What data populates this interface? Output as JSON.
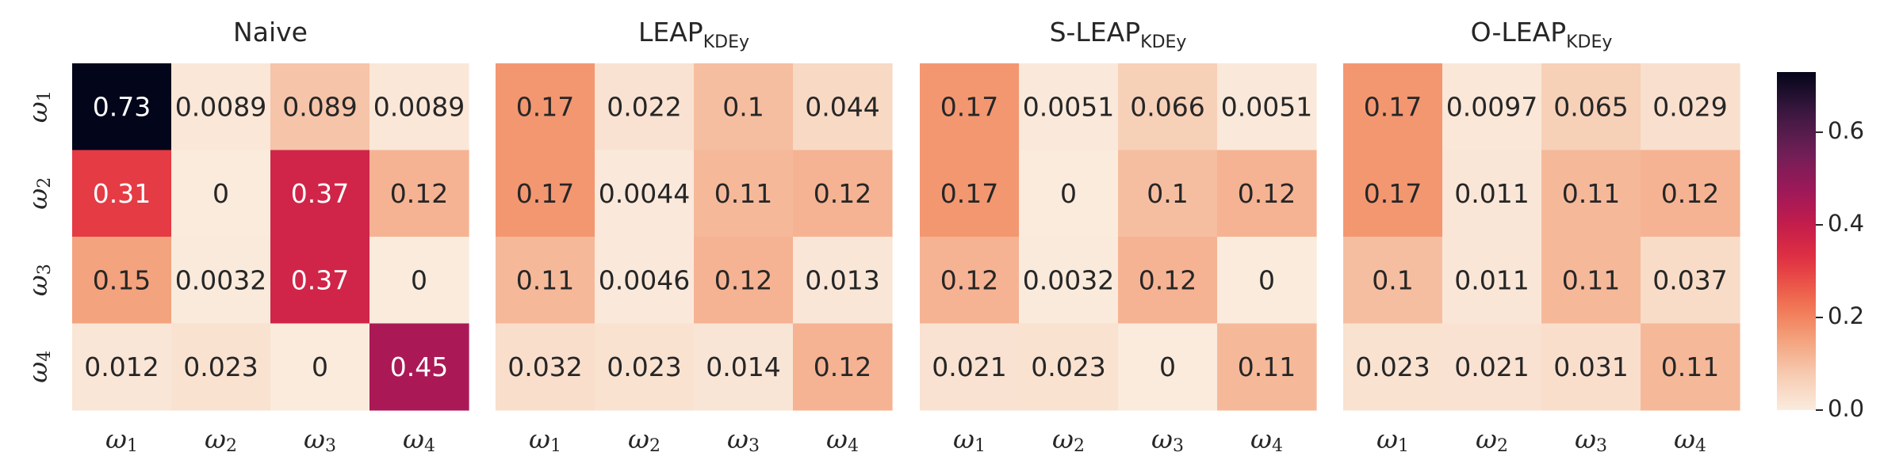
{
  "chart_data": {
    "type": "heatmap",
    "colormap": "rocket_r",
    "vmin": 0.0,
    "vmax": 0.73,
    "row_labels": [
      "ω₁",
      "ω₂",
      "ω₃",
      "ω₄"
    ],
    "col_labels": [
      "ω₁",
      "ω₂",
      "ω₃",
      "ω₄"
    ],
    "colorbar": {
      "ticks": [
        0.0,
        0.2,
        0.4,
        0.6
      ],
      "tick_labels": [
        "0.0",
        "0.2",
        "0.4",
        "0.6"
      ]
    },
    "panels": [
      {
        "title": "Naive",
        "title_main": "Naive",
        "title_sub": "",
        "values": [
          [
            0.73,
            0.0089,
            0.089,
            0.0089
          ],
          [
            0.31,
            0,
            0.37,
            0.12
          ],
          [
            0.15,
            0.0032,
            0.37,
            0
          ],
          [
            0.012,
            0.023,
            0,
            0.45
          ]
        ],
        "labels": [
          [
            "0.73",
            "0.0089",
            "0.089",
            "0.0089"
          ],
          [
            "0.31",
            "0",
            "0.37",
            "0.12"
          ],
          [
            "0.15",
            "0.0032",
            "0.37",
            "0"
          ],
          [
            "0.012",
            "0.023",
            "0",
            "0.45"
          ]
        ]
      },
      {
        "title": "LEAP_KDEy",
        "title_main": "LEAP",
        "title_sub": "KDEy",
        "values": [
          [
            0.17,
            0.022,
            0.1,
            0.044
          ],
          [
            0.17,
            0.0044,
            0.11,
            0.12
          ],
          [
            0.11,
            0.0046,
            0.12,
            0.013
          ],
          [
            0.032,
            0.023,
            0.014,
            0.12
          ]
        ],
        "labels": [
          [
            "0.17",
            "0.022",
            "0.1",
            "0.044"
          ],
          [
            "0.17",
            "0.0044",
            "0.11",
            "0.12"
          ],
          [
            "0.11",
            "0.0046",
            "0.12",
            "0.013"
          ],
          [
            "0.032",
            "0.023",
            "0.014",
            "0.12"
          ]
        ]
      },
      {
        "title": "S-LEAP_KDEy",
        "title_main": "S-LEAP",
        "title_sub": "KDEy",
        "values": [
          [
            0.17,
            0.0051,
            0.066,
            0.0051
          ],
          [
            0.17,
            0,
            0.1,
            0.12
          ],
          [
            0.12,
            0.0032,
            0.12,
            0
          ],
          [
            0.021,
            0.023,
            0,
            0.11
          ]
        ],
        "labels": [
          [
            "0.17",
            "0.0051",
            "0.066",
            "0.0051"
          ],
          [
            "0.17",
            "0",
            "0.1",
            "0.12"
          ],
          [
            "0.12",
            "0.0032",
            "0.12",
            "0"
          ],
          [
            "0.021",
            "0.023",
            "0",
            "0.11"
          ]
        ]
      },
      {
        "title": "O-LEAP_KDEy",
        "title_main": "O-LEAP",
        "title_sub": "KDEy",
        "values": [
          [
            0.17,
            0.0097,
            0.065,
            0.029
          ],
          [
            0.17,
            0.011,
            0.11,
            0.12
          ],
          [
            0.1,
            0.011,
            0.11,
            0.037
          ],
          [
            0.023,
            0.021,
            0.031,
            0.11
          ]
        ],
        "labels": [
          [
            "0.17",
            "0.0097",
            "0.065",
            "0.029"
          ],
          [
            "0.17",
            "0.011",
            "0.11",
            "0.12"
          ],
          [
            "0.1",
            "0.011",
            "0.11",
            "0.037"
          ],
          [
            "0.023",
            "0.021",
            "0.031",
            "0.11"
          ]
        ]
      }
    ]
  }
}
